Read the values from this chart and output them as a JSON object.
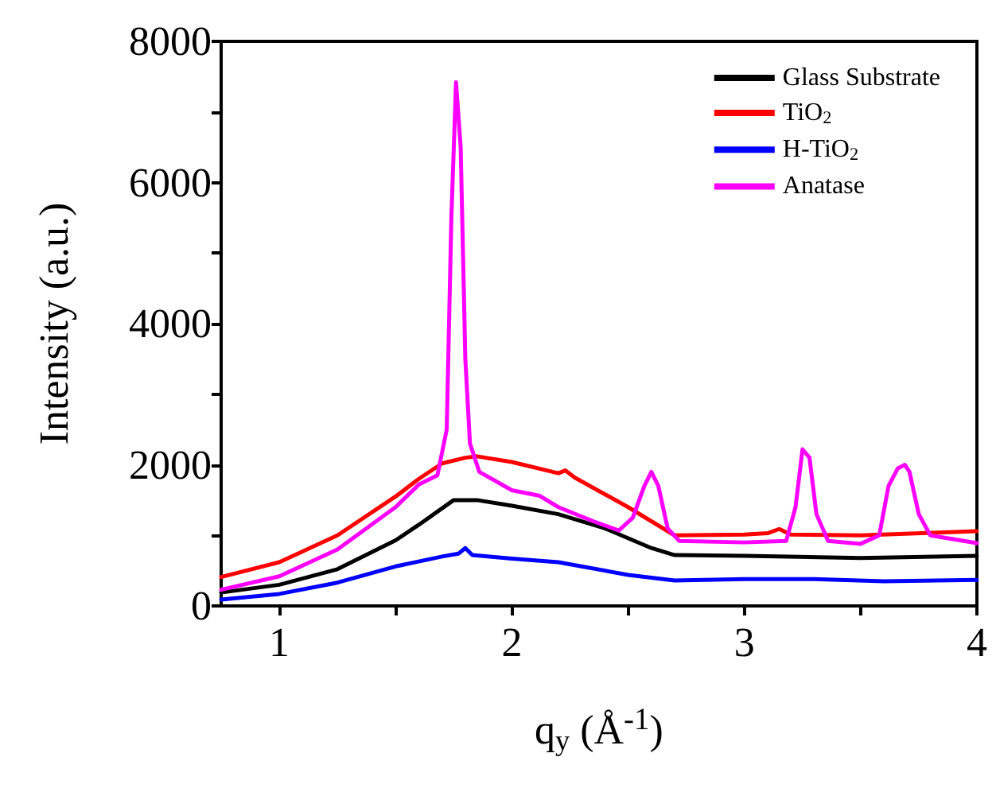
{
  "chart_data": {
    "type": "line",
    "xlabel": "q$_{y}$ (Å$^{-1}$)",
    "ylabel": "Intensity (a.u.)",
    "xlim": [
      0.75,
      4
    ],
    "xticks": [
      1,
      {
        "value": 1.5,
        "label": null
      },
      2,
      {
        "value": 2.5,
        "label": null
      },
      3,
      {
        "value": 3.5,
        "label": null
      },
      4
    ],
    "ylim": [
      0,
      8000
    ],
    "yticks": [
      0,
      {
        "value": 1000,
        "label": null
      },
      2000,
      {
        "value": 3000,
        "label": null
      },
      4000,
      {
        "value": 5000,
        "label": null
      },
      6000,
      {
        "value": 7000,
        "label": null
      },
      8000
    ],
    "grid": false,
    "legend": "top right",
    "marker": "none",
    "line_style": "solid",
    "series": [
      {
        "name": "Glass Substrate",
        "color": "#000000",
        "x": [
          0.75,
          1.0,
          1.25,
          1.5,
          1.6,
          1.75,
          1.85,
          2.0,
          2.2,
          2.4,
          2.6,
          2.7,
          3.0,
          3.5,
          4.0
        ],
        "values": [
          190,
          300,
          520,
          930,
          1150,
          1500,
          1500,
          1420,
          1300,
          1100,
          820,
          720,
          710,
          680,
          710
        ]
      },
      {
        "name": "TiO$_{2}$",
        "color": "#ff0000",
        "x": [
          0.75,
          1.0,
          1.25,
          1.5,
          1.6,
          1.7,
          1.8,
          1.85,
          2.0,
          2.2,
          2.23,
          2.27,
          2.5,
          2.7,
          3.0,
          3.1,
          3.15,
          3.2,
          3.5,
          4.0
        ],
        "values": [
          410,
          620,
          1000,
          1550,
          1800,
          2020,
          2100,
          2120,
          2040,
          1880,
          1920,
          1820,
          1400,
          1000,
          1010,
          1030,
          1090,
          1010,
          1000,
          1060
        ]
      },
      {
        "name": "H-TiO$_{2}$",
        "color": "#0000ff",
        "x": [
          0.75,
          1.0,
          1.25,
          1.5,
          1.7,
          1.77,
          1.8,
          1.83,
          2.0,
          2.2,
          2.5,
          2.7,
          3.0,
          3.3,
          3.6,
          4.0
        ],
        "values": [
          90,
          170,
          330,
          560,
          700,
          740,
          820,
          720,
          670,
          620,
          440,
          360,
          380,
          380,
          350,
          370
        ]
      },
      {
        "name": "Anatase",
        "color": "#ff00ff",
        "x": [
          0.75,
          1.0,
          1.25,
          1.5,
          1.6,
          1.68,
          1.72,
          1.74,
          1.76,
          1.78,
          1.8,
          1.82,
          1.86,
          2.0,
          2.12,
          2.2,
          2.35,
          2.46,
          2.52,
          2.57,
          2.6,
          2.63,
          2.67,
          2.72,
          3.0,
          3.18,
          3.22,
          3.25,
          3.28,
          3.31,
          3.36,
          3.5,
          3.58,
          3.62,
          3.66,
          3.69,
          3.71,
          3.75,
          3.8,
          4.0
        ],
        "values": [
          230,
          420,
          800,
          1400,
          1720,
          1850,
          2500,
          5500,
          7420,
          6500,
          3500,
          2300,
          1900,
          1640,
          1560,
          1400,
          1200,
          1070,
          1250,
          1700,
          1900,
          1700,
          1100,
          920,
          900,
          920,
          1400,
          2220,
          2100,
          1300,
          920,
          880,
          1000,
          1700,
          1950,
          2000,
          1900,
          1300,
          1000,
          890
        ]
      }
    ]
  }
}
